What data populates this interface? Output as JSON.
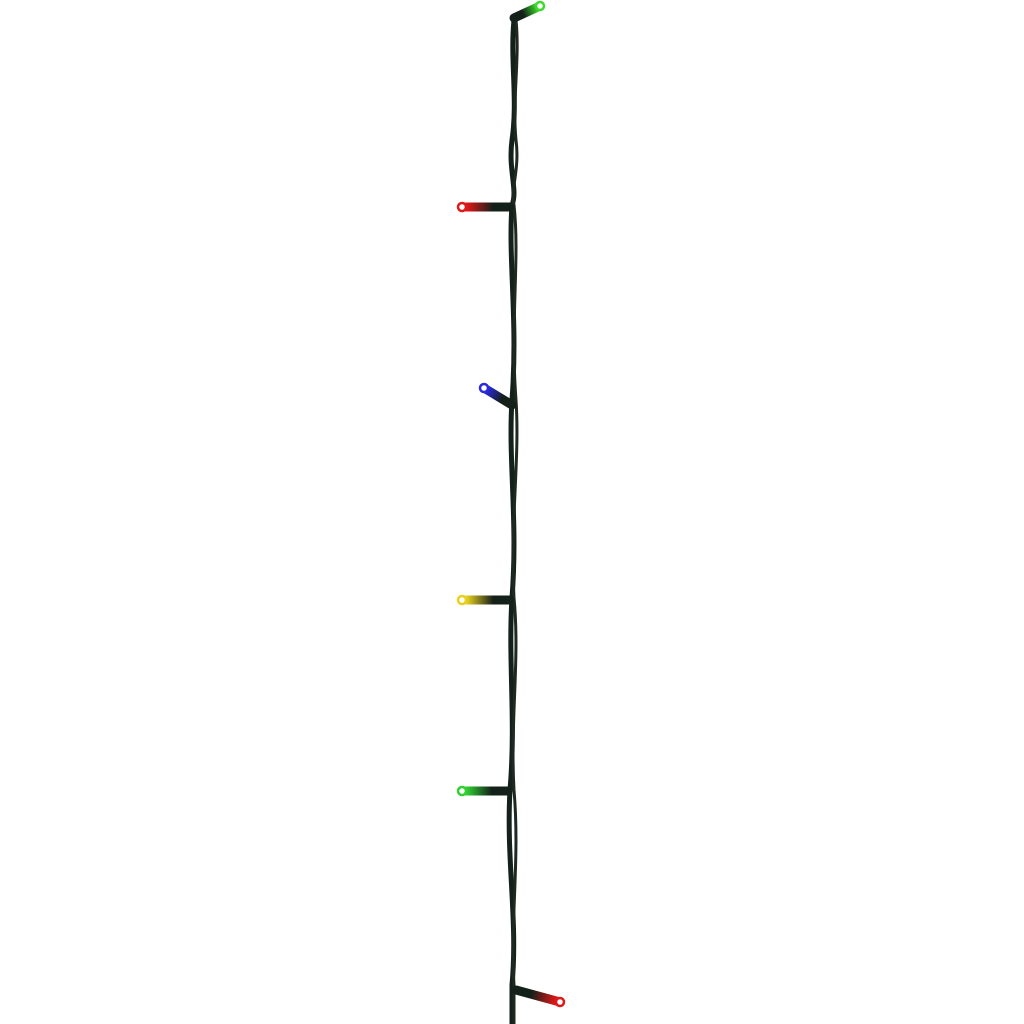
{
  "image": {
    "subject": "led-string-lights",
    "background_color": "#ffffff",
    "wire_color": "#14201a",
    "bulbs": [
      {
        "color": "green",
        "hex": "#3ddc2a"
      },
      {
        "color": "red",
        "hex": "#e01818"
      },
      {
        "color": "blue",
        "hex": "#2a2ae0"
      },
      {
        "color": "yellow",
        "hex": "#e8d020"
      },
      {
        "color": "green",
        "hex": "#30d030"
      },
      {
        "color": "red",
        "hex": "#e01818"
      }
    ]
  }
}
